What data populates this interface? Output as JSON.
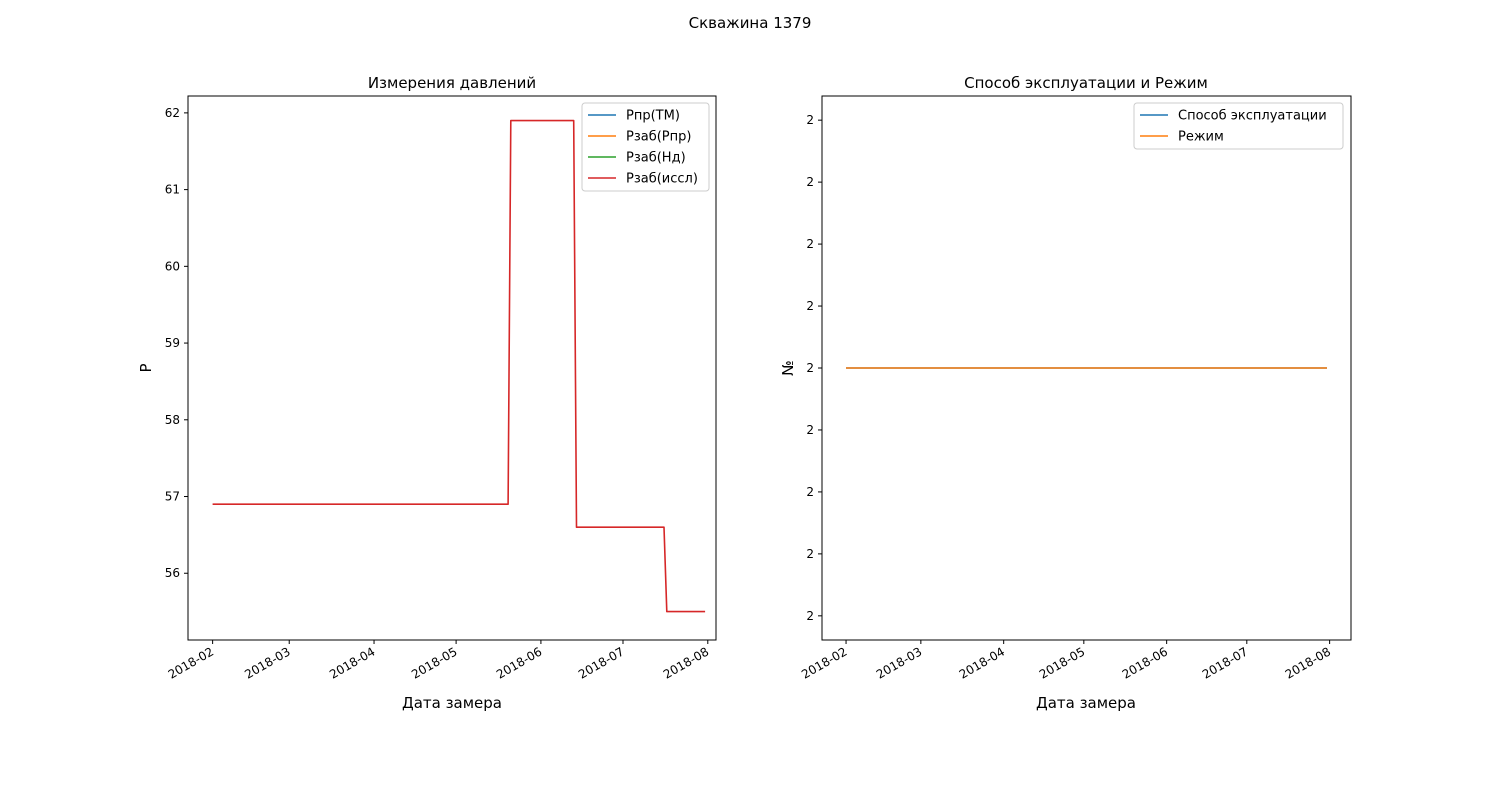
{
  "suptitle": "Скважина 1379",
  "chart_data": [
    {
      "type": "line",
      "title": "Измерения давлений",
      "xlabel": "Дата замера",
      "ylabel": "P",
      "x_axis": "date",
      "xlim": [
        "2018-01-23",
        "2018-08-04"
      ],
      "ylim": [
        55.13,
        62.22
      ],
      "xticks": [
        "2018-02-01",
        "2018-03-01",
        "2018-04-01",
        "2018-05-01",
        "2018-06-01",
        "2018-07-01",
        "2018-08-01"
      ],
      "xtick_labels": [
        "2018-02",
        "2018-03",
        "2018-04",
        "2018-05",
        "2018-06",
        "2018-07",
        "2018-08"
      ],
      "yticks": [
        56,
        57,
        58,
        59,
        60,
        61,
        62
      ],
      "ytick_labels": [
        "56",
        "57",
        "58",
        "59",
        "60",
        "61",
        "62"
      ],
      "grid": false,
      "legend": "top-right",
      "series": [
        {
          "name": "Pпр(ТМ)",
          "color": "#1f77b4",
          "x": [],
          "y": []
        },
        {
          "name": "Рзаб(Рпр)",
          "color": "#ff7f0e",
          "x": [],
          "y": []
        },
        {
          "name": "Рзаб(Нд)",
          "color": "#2ca02c",
          "x": [],
          "y": []
        },
        {
          "name": "Рзаб(иссл)",
          "color": "#d62728",
          "x": [
            "2018-02-01",
            "2018-05-20",
            "2018-05-21",
            "2018-06-13",
            "2018-06-14",
            "2018-07-16",
            "2018-07-17",
            "2018-07-31"
          ],
          "y": [
            56.9,
            56.9,
            61.9,
            61.9,
            56.6,
            56.6,
            55.5,
            55.5
          ]
        }
      ]
    },
    {
      "type": "line",
      "title": "Способ эксплуатации и Режим",
      "xlabel": "Дата замера",
      "ylabel": "№",
      "x_axis": "date",
      "xlim": [
        "2018-01-23",
        "2018-08-09"
      ],
      "ylim": [
        1.9561,
        2.0439
      ],
      "yticks": [
        1.96,
        1.97,
        1.98,
        1.99,
        2.0,
        2.01,
        2.02,
        2.03,
        2.04
      ],
      "ytick_labels": [
        "2",
        "2",
        "2",
        "2",
        "2",
        "2",
        "2",
        "2",
        "2"
      ],
      "xticks": [
        "2018-02-01",
        "2018-03-01",
        "2018-04-01",
        "2018-05-01",
        "2018-06-01",
        "2018-07-01",
        "2018-08-01"
      ],
      "xtick_labels": [
        "2018-02",
        "2018-03",
        "2018-04",
        "2018-05",
        "2018-06",
        "2018-07",
        "2018-08"
      ],
      "grid": false,
      "legend": "top-right",
      "series": [
        {
          "name": "Способ эксплуатации",
          "color": "#1f77b4",
          "x": [
            "2018-02-01",
            "2018-07-31"
          ],
          "y": [
            2,
            2
          ]
        },
        {
          "name": "Режим",
          "color": "#ff7f0e",
          "x": [
            "2018-02-01",
            "2018-07-31"
          ],
          "y": [
            2,
            2
          ]
        }
      ]
    }
  ]
}
